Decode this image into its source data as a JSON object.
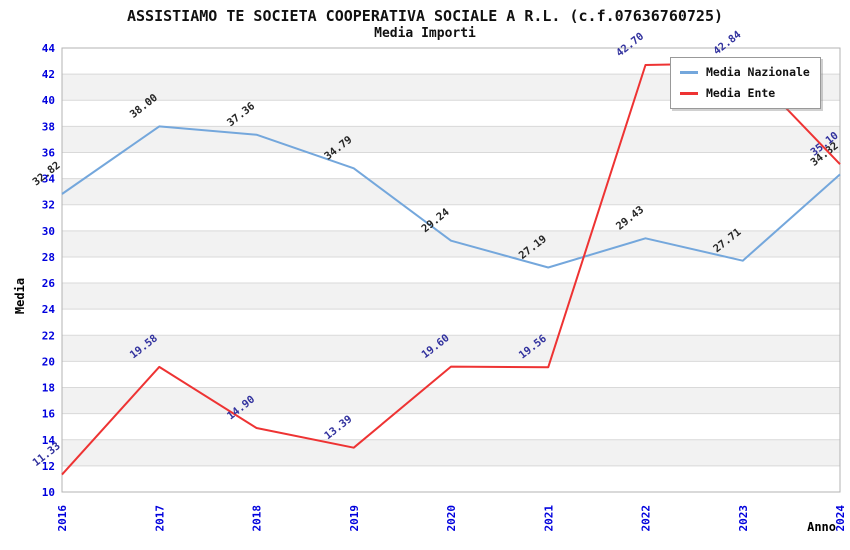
{
  "header": {
    "title": "ASSISTIAMO TE SOCIETA COOPERATIVA SOCIALE A R.L. (c.f.07636760725)",
    "subtitle": "Media Importi"
  },
  "chart_data": {
    "type": "line",
    "x": [
      "2016",
      "2017",
      "2018",
      "2019",
      "2020",
      "2021",
      "2022",
      "2023",
      "2024"
    ],
    "xlabel": "Anno",
    "ylabel": "Media",
    "ylim": [
      10,
      44
    ],
    "ytick_step": 2,
    "grid": "horizontal-stripes",
    "legend_position": "top-right",
    "series": [
      {
        "name": "Media Nazionale",
        "color": "#74a7dc",
        "label_color": "#262626",
        "values": [
          32.82,
          38.0,
          37.36,
          34.79,
          29.24,
          27.19,
          29.43,
          27.71,
          34.32
        ]
      },
      {
        "name": "Media Ente",
        "color": "#ee3333",
        "label_color": "#32329e",
        "values": [
          11.33,
          19.58,
          14.9,
          13.39,
          19.6,
          19.56,
          42.7,
          42.84,
          35.1
        ]
      }
    ],
    "colors": {
      "axis_tick_label": "#0000dd",
      "band_stripe": "#f2f2f2",
      "gridline": "#d9d9d9",
      "frame_border": "#b3b3b3",
      "axis_title": "#000000"
    }
  }
}
